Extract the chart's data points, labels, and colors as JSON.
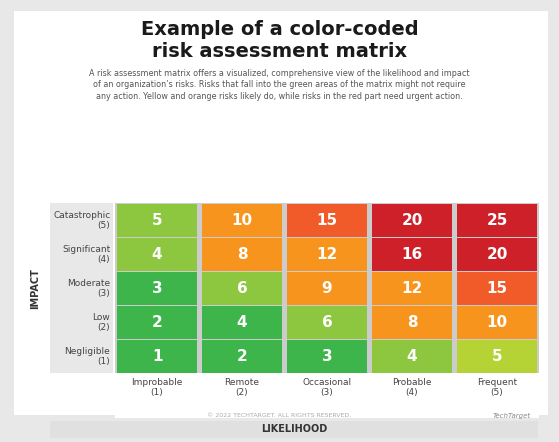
{
  "title": "Example of a color-coded\nrisk assessment matrix",
  "subtitle": "A risk assessment matrix offers a visualized, comprehensive view of the likelihood and impact\nof an organization’s risks. Risks that fall into the green areas of the matrix might not require\nany action. Yellow and orange risks likely do, while risks in the red part need urgent action.",
  "matrix": [
    [
      5,
      10,
      15,
      20,
      25
    ],
    [
      4,
      8,
      12,
      16,
      20
    ],
    [
      3,
      6,
      9,
      12,
      15
    ],
    [
      2,
      4,
      6,
      8,
      10
    ],
    [
      1,
      2,
      3,
      4,
      5
    ]
  ],
  "colors": [
    [
      "#8dc63f",
      "#f7941d",
      "#f15a29",
      "#ce2028",
      "#ce2028"
    ],
    [
      "#8dc63f",
      "#f7941d",
      "#f7941d",
      "#ce2028",
      "#ce2028"
    ],
    [
      "#3db54a",
      "#8dc63f",
      "#f7941d",
      "#f7941d",
      "#f15a29"
    ],
    [
      "#3db54a",
      "#3db54a",
      "#8dc63f",
      "#f7941d",
      "#f7941d"
    ],
    [
      "#3db54a",
      "#3db54a",
      "#3db54a",
      "#8dc63f",
      "#b5d334"
    ]
  ],
  "row_labels": [
    "Catastrophic\n(5)",
    "Significant\n(4)",
    "Moderate\n(3)",
    "Low\n(2)",
    "Negligible\n(1)"
  ],
  "col_labels": [
    "Improbable\n(1)",
    "Remote\n(2)",
    "Occasional\n(3)",
    "Probable\n(4)",
    "Frequent\n(5)"
  ],
  "xlabel": "LIKELIHOOD",
  "ylabel": "IMPACT",
  "label_col_bg": "#e8e8e8",
  "likelihood_bar_bg": "#e0e0e0",
  "fig_bg": "#ffffff",
  "outer_bg": "#e8e8e8",
  "title_fontsize": 14,
  "subtitle_fontsize": 5.8,
  "cell_num_fontsize": 11,
  "row_label_fontsize": 6.5,
  "col_label_fontsize": 6.5,
  "axis_label_fontsize": 7,
  "footer_text": "© 2022 TECHTARGET. ALL RIGHTS RESERVED.",
  "brand_text": "TechTarget"
}
